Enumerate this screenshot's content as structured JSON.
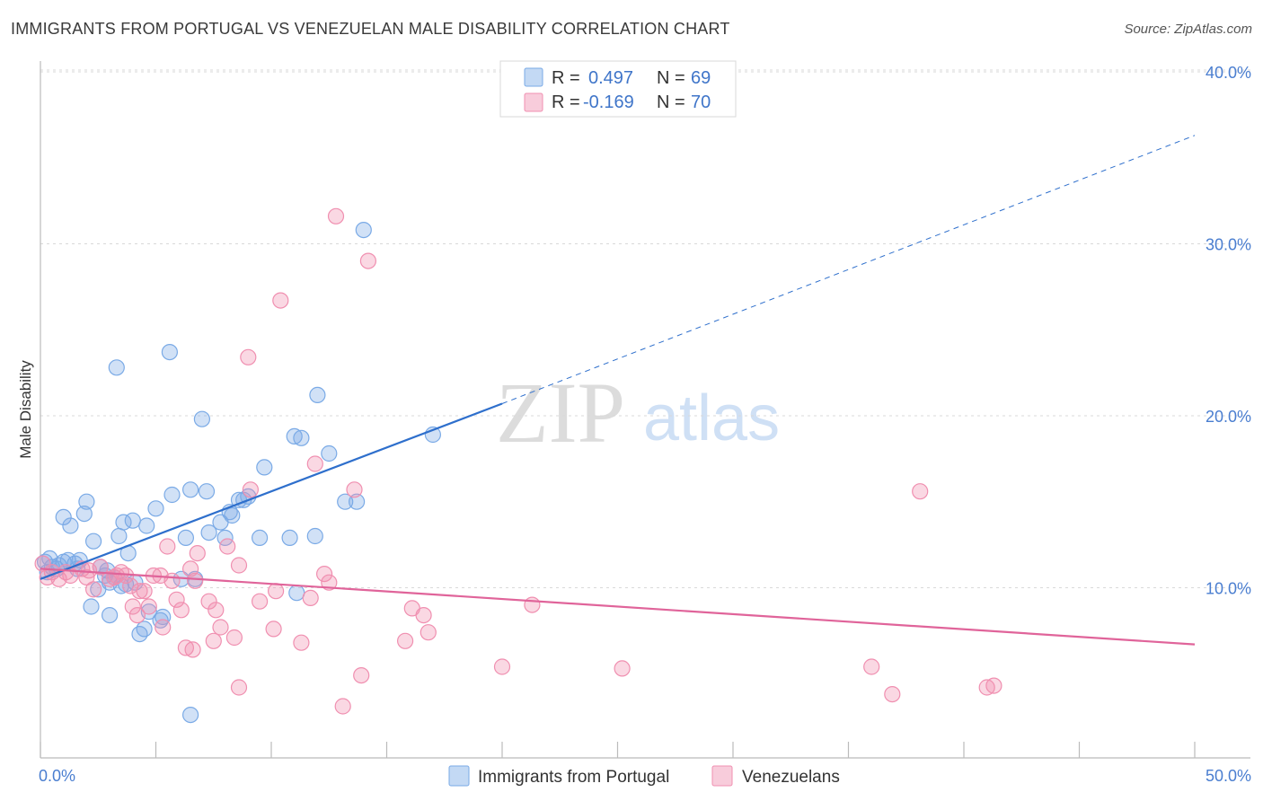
{
  "header": {
    "title": "IMMIGRANTS FROM PORTUGAL VS VENEZUELAN MALE DISABILITY CORRELATION CHART",
    "source": "Source: ZipAtlas.com"
  },
  "watermark": {
    "zip": "ZIP",
    "atlas": "atlas"
  },
  "stats_legend": {
    "rows": [
      {
        "r_label": "R =",
        "r_value": "0.497",
        "n_label": "N =",
        "n_value": "69",
        "color": "#7aaae6"
      },
      {
        "r_label": "R =",
        "r_value": "-0.169",
        "n_label": "N =",
        "n_value": "70",
        "color": "#f08fb0"
      }
    ]
  },
  "chart_data": {
    "type": "scatter",
    "title": "IMMIGRANTS FROM PORTUGAL VS VENEZUELAN MALE DISABILITY CORRELATION CHART",
    "xlabel": "",
    "ylabel": "Male Disability",
    "xlim": [
      0,
      50
    ],
    "ylim": [
      0,
      40
    ],
    "x_tick_labels": [
      "0.0%",
      "50.0%"
    ],
    "y_ticks": [
      10,
      20,
      30,
      40
    ],
    "y_tick_labels": [
      "10.0%",
      "20.0%",
      "30.0%",
      "40.0%"
    ],
    "grid": true,
    "legend_position": "bottom",
    "series": [
      {
        "name": "Immigrants from Portugal",
        "color": "#7aaae6",
        "line_color": "#2e6fcc",
        "trend": {
          "x0": 0,
          "y0": 10.4,
          "x1": 20,
          "y1": 20.6,
          "dashed_to_x": 50,
          "dashed_to_y": 36.2
        },
        "points": [
          [
            0.2,
            11.4
          ],
          [
            0.3,
            10.8
          ],
          [
            0.5,
            11.1
          ],
          [
            0.7,
            11.0
          ],
          [
            1.0,
            11.4
          ],
          [
            1.0,
            14.0
          ],
          [
            1.2,
            11.5
          ],
          [
            1.3,
            13.5
          ],
          [
            1.5,
            11.3
          ],
          [
            1.7,
            11.5
          ],
          [
            1.9,
            14.2
          ],
          [
            2.0,
            14.9
          ],
          [
            2.2,
            8.8
          ],
          [
            2.3,
            12.6
          ],
          [
            2.5,
            9.8
          ],
          [
            2.6,
            11.1
          ],
          [
            2.8,
            10.6
          ],
          [
            3.0,
            10.2
          ],
          [
            3.0,
            8.3
          ],
          [
            3.2,
            10.5
          ],
          [
            3.3,
            22.7
          ],
          [
            3.4,
            12.9
          ],
          [
            3.5,
            10.0
          ],
          [
            3.6,
            13.7
          ],
          [
            3.8,
            11.9
          ],
          [
            4.0,
            13.8
          ],
          [
            4.1,
            10.2
          ],
          [
            4.3,
            7.2
          ],
          [
            4.5,
            7.5
          ],
          [
            4.6,
            13.5
          ],
          [
            4.7,
            8.5
          ],
          [
            5.0,
            14.5
          ],
          [
            5.2,
            8.0
          ],
          [
            5.6,
            23.6
          ],
          [
            5.7,
            15.3
          ],
          [
            6.1,
            10.4
          ],
          [
            6.3,
            12.8
          ],
          [
            6.5,
            2.5
          ],
          [
            6.5,
            15.6
          ],
          [
            6.7,
            10.4
          ],
          [
            7.0,
            19.7
          ],
          [
            7.2,
            15.5
          ],
          [
            7.3,
            13.1
          ],
          [
            7.8,
            13.7
          ],
          [
            8.0,
            12.8
          ],
          [
            8.2,
            14.3
          ],
          [
            8.3,
            14.1
          ],
          [
            8.6,
            15.0
          ],
          [
            8.8,
            15.0
          ],
          [
            9.0,
            15.2
          ],
          [
            9.5,
            12.8
          ],
          [
            9.7,
            16.9
          ],
          [
            10.8,
            12.8
          ],
          [
            11.0,
            18.7
          ],
          [
            11.1,
            9.6
          ],
          [
            11.3,
            18.6
          ],
          [
            11.9,
            12.9
          ],
          [
            12.0,
            21.1
          ],
          [
            12.5,
            17.7
          ],
          [
            13.2,
            14.9
          ],
          [
            13.7,
            14.9
          ],
          [
            14.0,
            30.7
          ],
          [
            17.0,
            18.8
          ],
          [
            0.4,
            11.6
          ],
          [
            0.8,
            11.2
          ],
          [
            1.6,
            11.0
          ],
          [
            2.9,
            10.9
          ],
          [
            3.7,
            10.1
          ],
          [
            5.3,
            8.2
          ]
        ]
      },
      {
        "name": "Venezuelans",
        "color": "#f08fb0",
        "line_color": "#e0649a",
        "trend": {
          "x0": 0,
          "y0": 11.0,
          "x1": 50,
          "y1": 6.6
        },
        "points": [
          [
            0.1,
            11.3
          ],
          [
            0.5,
            10.8
          ],
          [
            0.8,
            10.4
          ],
          [
            1.1,
            10.8
          ],
          [
            1.3,
            10.6
          ],
          [
            1.8,
            11.0
          ],
          [
            2.0,
            10.5
          ],
          [
            2.3,
            9.8
          ],
          [
            2.6,
            11.1
          ],
          [
            3.0,
            10.4
          ],
          [
            3.3,
            10.6
          ],
          [
            3.5,
            10.8
          ],
          [
            3.7,
            10.6
          ],
          [
            3.9,
            10.0
          ],
          [
            4.0,
            8.8
          ],
          [
            4.2,
            8.3
          ],
          [
            4.3,
            9.7
          ],
          [
            4.5,
            9.7
          ],
          [
            4.7,
            8.8
          ],
          [
            4.9,
            10.6
          ],
          [
            5.2,
            10.6
          ],
          [
            5.3,
            7.6
          ],
          [
            5.5,
            12.3
          ],
          [
            5.7,
            10.3
          ],
          [
            5.9,
            9.2
          ],
          [
            6.1,
            8.6
          ],
          [
            6.3,
            6.4
          ],
          [
            6.5,
            11.0
          ],
          [
            6.6,
            6.3
          ],
          [
            6.7,
            10.3
          ],
          [
            6.8,
            11.9
          ],
          [
            7.3,
            9.1
          ],
          [
            7.5,
            6.8
          ],
          [
            7.6,
            8.6
          ],
          [
            7.8,
            7.6
          ],
          [
            8.1,
            12.3
          ],
          [
            8.4,
            7.0
          ],
          [
            8.6,
            11.2
          ],
          [
            8.6,
            4.1
          ],
          [
            9.0,
            23.3
          ],
          [
            9.1,
            15.6
          ],
          [
            9.5,
            9.1
          ],
          [
            10.1,
            7.5
          ],
          [
            10.2,
            9.7
          ],
          [
            10.4,
            26.6
          ],
          [
            11.3,
            6.7
          ],
          [
            11.7,
            9.3
          ],
          [
            11.9,
            17.1
          ],
          [
            12.3,
            10.7
          ],
          [
            12.5,
            10.2
          ],
          [
            12.8,
            31.5
          ],
          [
            13.1,
            3.0
          ],
          [
            13.6,
            15.6
          ],
          [
            13.9,
            4.8
          ],
          [
            14.2,
            28.9
          ],
          [
            15.8,
            6.8
          ],
          [
            16.1,
            8.7
          ],
          [
            16.6,
            8.3
          ],
          [
            16.8,
            7.3
          ],
          [
            20.0,
            5.3
          ],
          [
            21.3,
            8.9
          ],
          [
            25.2,
            5.2
          ],
          [
            36.0,
            5.3
          ],
          [
            36.9,
            3.7
          ],
          [
            38.1,
            15.5
          ],
          [
            41.0,
            4.1
          ],
          [
            41.3,
            4.2
          ],
          [
            0.3,
            10.5
          ],
          [
            2.1,
            10.9
          ],
          [
            3.2,
            10.5
          ]
        ]
      }
    ]
  }
}
